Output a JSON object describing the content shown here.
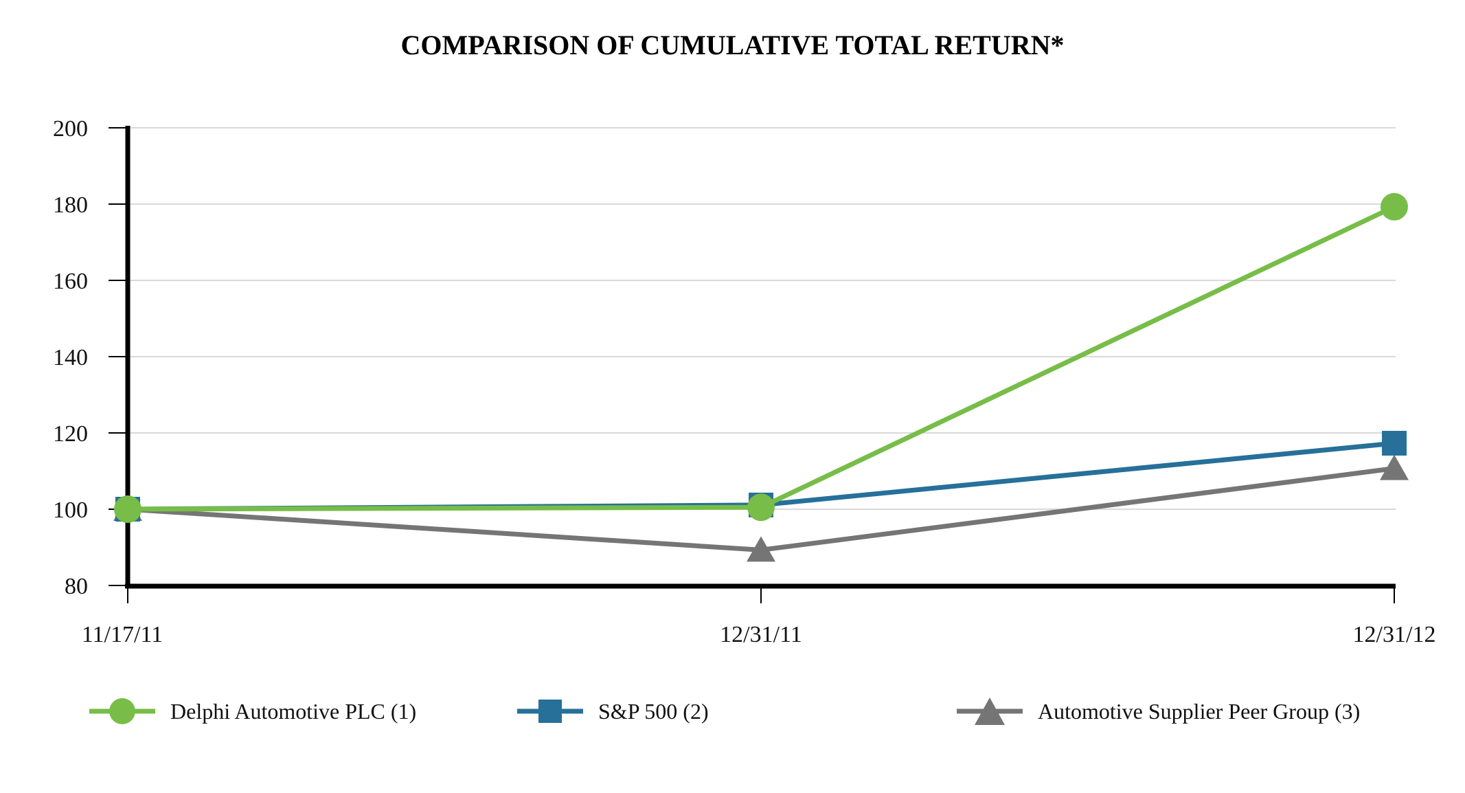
{
  "title": "COMPARISON OF CUMULATIVE TOTAL RETURN*",
  "chart_data": {
    "type": "line",
    "categories": [
      "11/17/11",
      "12/31/11",
      "12/31/12"
    ],
    "series": [
      {
        "name": "Delphi Automotive PLC (1)",
        "color": "#77BD48",
        "marker": "circle",
        "values": [
          100,
          100.5,
          179.3
        ]
      },
      {
        "name": "S&P 500 (2)",
        "color": "#26709A",
        "marker": "square",
        "values": [
          100,
          101.1,
          117.3
        ]
      },
      {
        "name": "Automotive Supplier Peer Group (3)",
        "color": "#757575",
        "marker": "triangle",
        "values": [
          100,
          89.3,
          110.7
        ]
      }
    ],
    "ylim": [
      80,
      200
    ],
    "ytick_step": 20,
    "grid": true,
    "legend_position": "bottom",
    "axis_color": "#000000",
    "gridline_color": "#D9D9D9"
  }
}
